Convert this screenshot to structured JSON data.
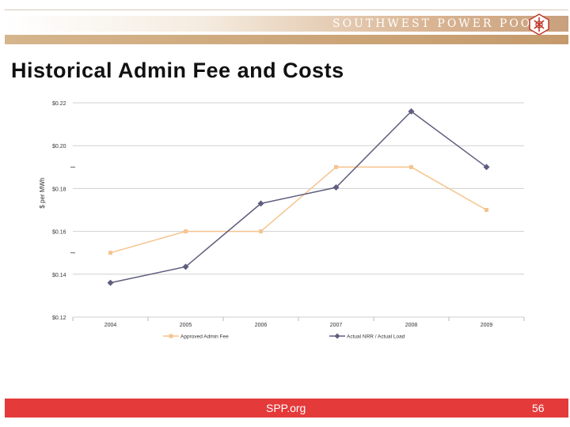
{
  "header": {
    "brand": "Southwest Power Pool",
    "brand_display": "SOUTHWEST POWER POOL"
  },
  "title": "Historical Admin Fee and Costs",
  "footer": {
    "site": "SPP.org",
    "page_number": "56"
  },
  "colors": {
    "accent_red": "#e43a3a",
    "gold": "#d6b58c",
    "series_fee": "#f5c48f",
    "series_actual": "#5e5e7e"
  },
  "chart_data": {
    "type": "line",
    "title": "",
    "xlabel": "",
    "ylabel": "$ per MWh",
    "x": [
      "2004",
      "2005",
      "2006",
      "2007",
      "2008",
      "2009"
    ],
    "ylim": [
      0.12,
      0.22
    ],
    "y_ticks": [
      "$0.12",
      "$0.14",
      "$0.16",
      "$0.18",
      "$0.20",
      "$0.22"
    ],
    "grid": true,
    "legend": "bottom",
    "series": [
      {
        "name": "Approved Admin Fee",
        "marker": "square",
        "color": "#f5c48f",
        "values": [
          0.15,
          0.16,
          0.16,
          0.19,
          0.19,
          0.17
        ]
      },
      {
        "name": "Actual NRR / Actual Load",
        "marker": "diamond",
        "color": "#5e5e7e",
        "values": [
          0.136,
          0.1435,
          0.173,
          0.1805,
          0.216,
          0.19
        ]
      }
    ]
  }
}
